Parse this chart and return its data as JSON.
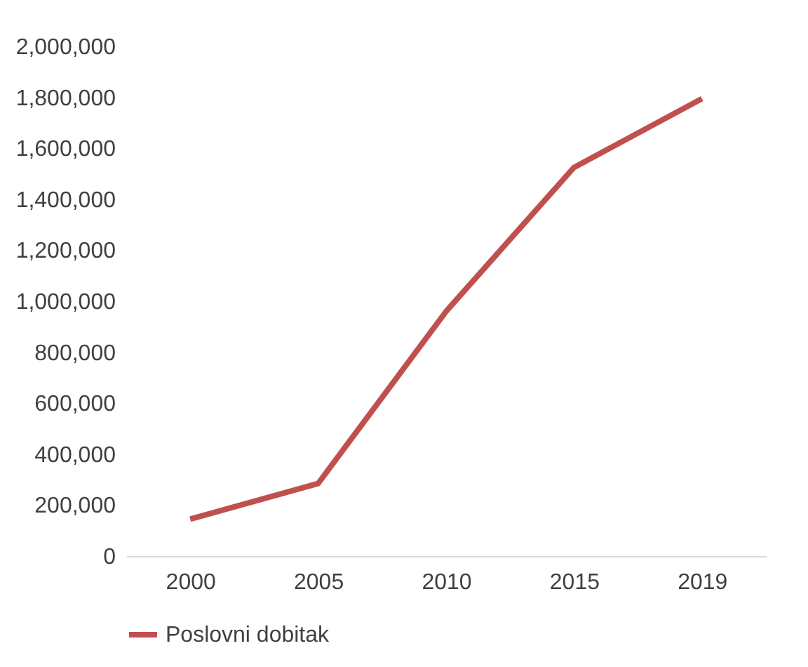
{
  "chart_data": {
    "type": "line",
    "categories": [
      "2000",
      "2005",
      "2010",
      "2015",
      "2019"
    ],
    "series": [
      {
        "name": "Poslovni dobitak",
        "color": "#c0504d",
        "values": [
          145000,
          285000,
          960000,
          1525000,
          1795000
        ]
      }
    ],
    "ylim": [
      0,
      2000000
    ],
    "yticks": [
      0,
      {
        "value": 200000,
        "label": "200,000"
      },
      {
        "value": 400000,
        "label": "400,000"
      },
      {
        "value": 600000,
        "label": "600,000"
      },
      {
        "value": 800000,
        "label": "800,000"
      },
      {
        "value": 1000000,
        "label": "1,000,000"
      },
      {
        "value": 1200000,
        "label": "1,200,000"
      },
      {
        "value": 1400000,
        "label": "1,400,000"
      },
      {
        "value": 1600000,
        "label": "1,600,000"
      },
      {
        "value": 1800000,
        "label": "1,800,000"
      },
      {
        "value": 2000000,
        "label": "2,000,000"
      }
    ],
    "grid": false,
    "legend": "bottom",
    "marker": "none",
    "line_style": "solid"
  }
}
